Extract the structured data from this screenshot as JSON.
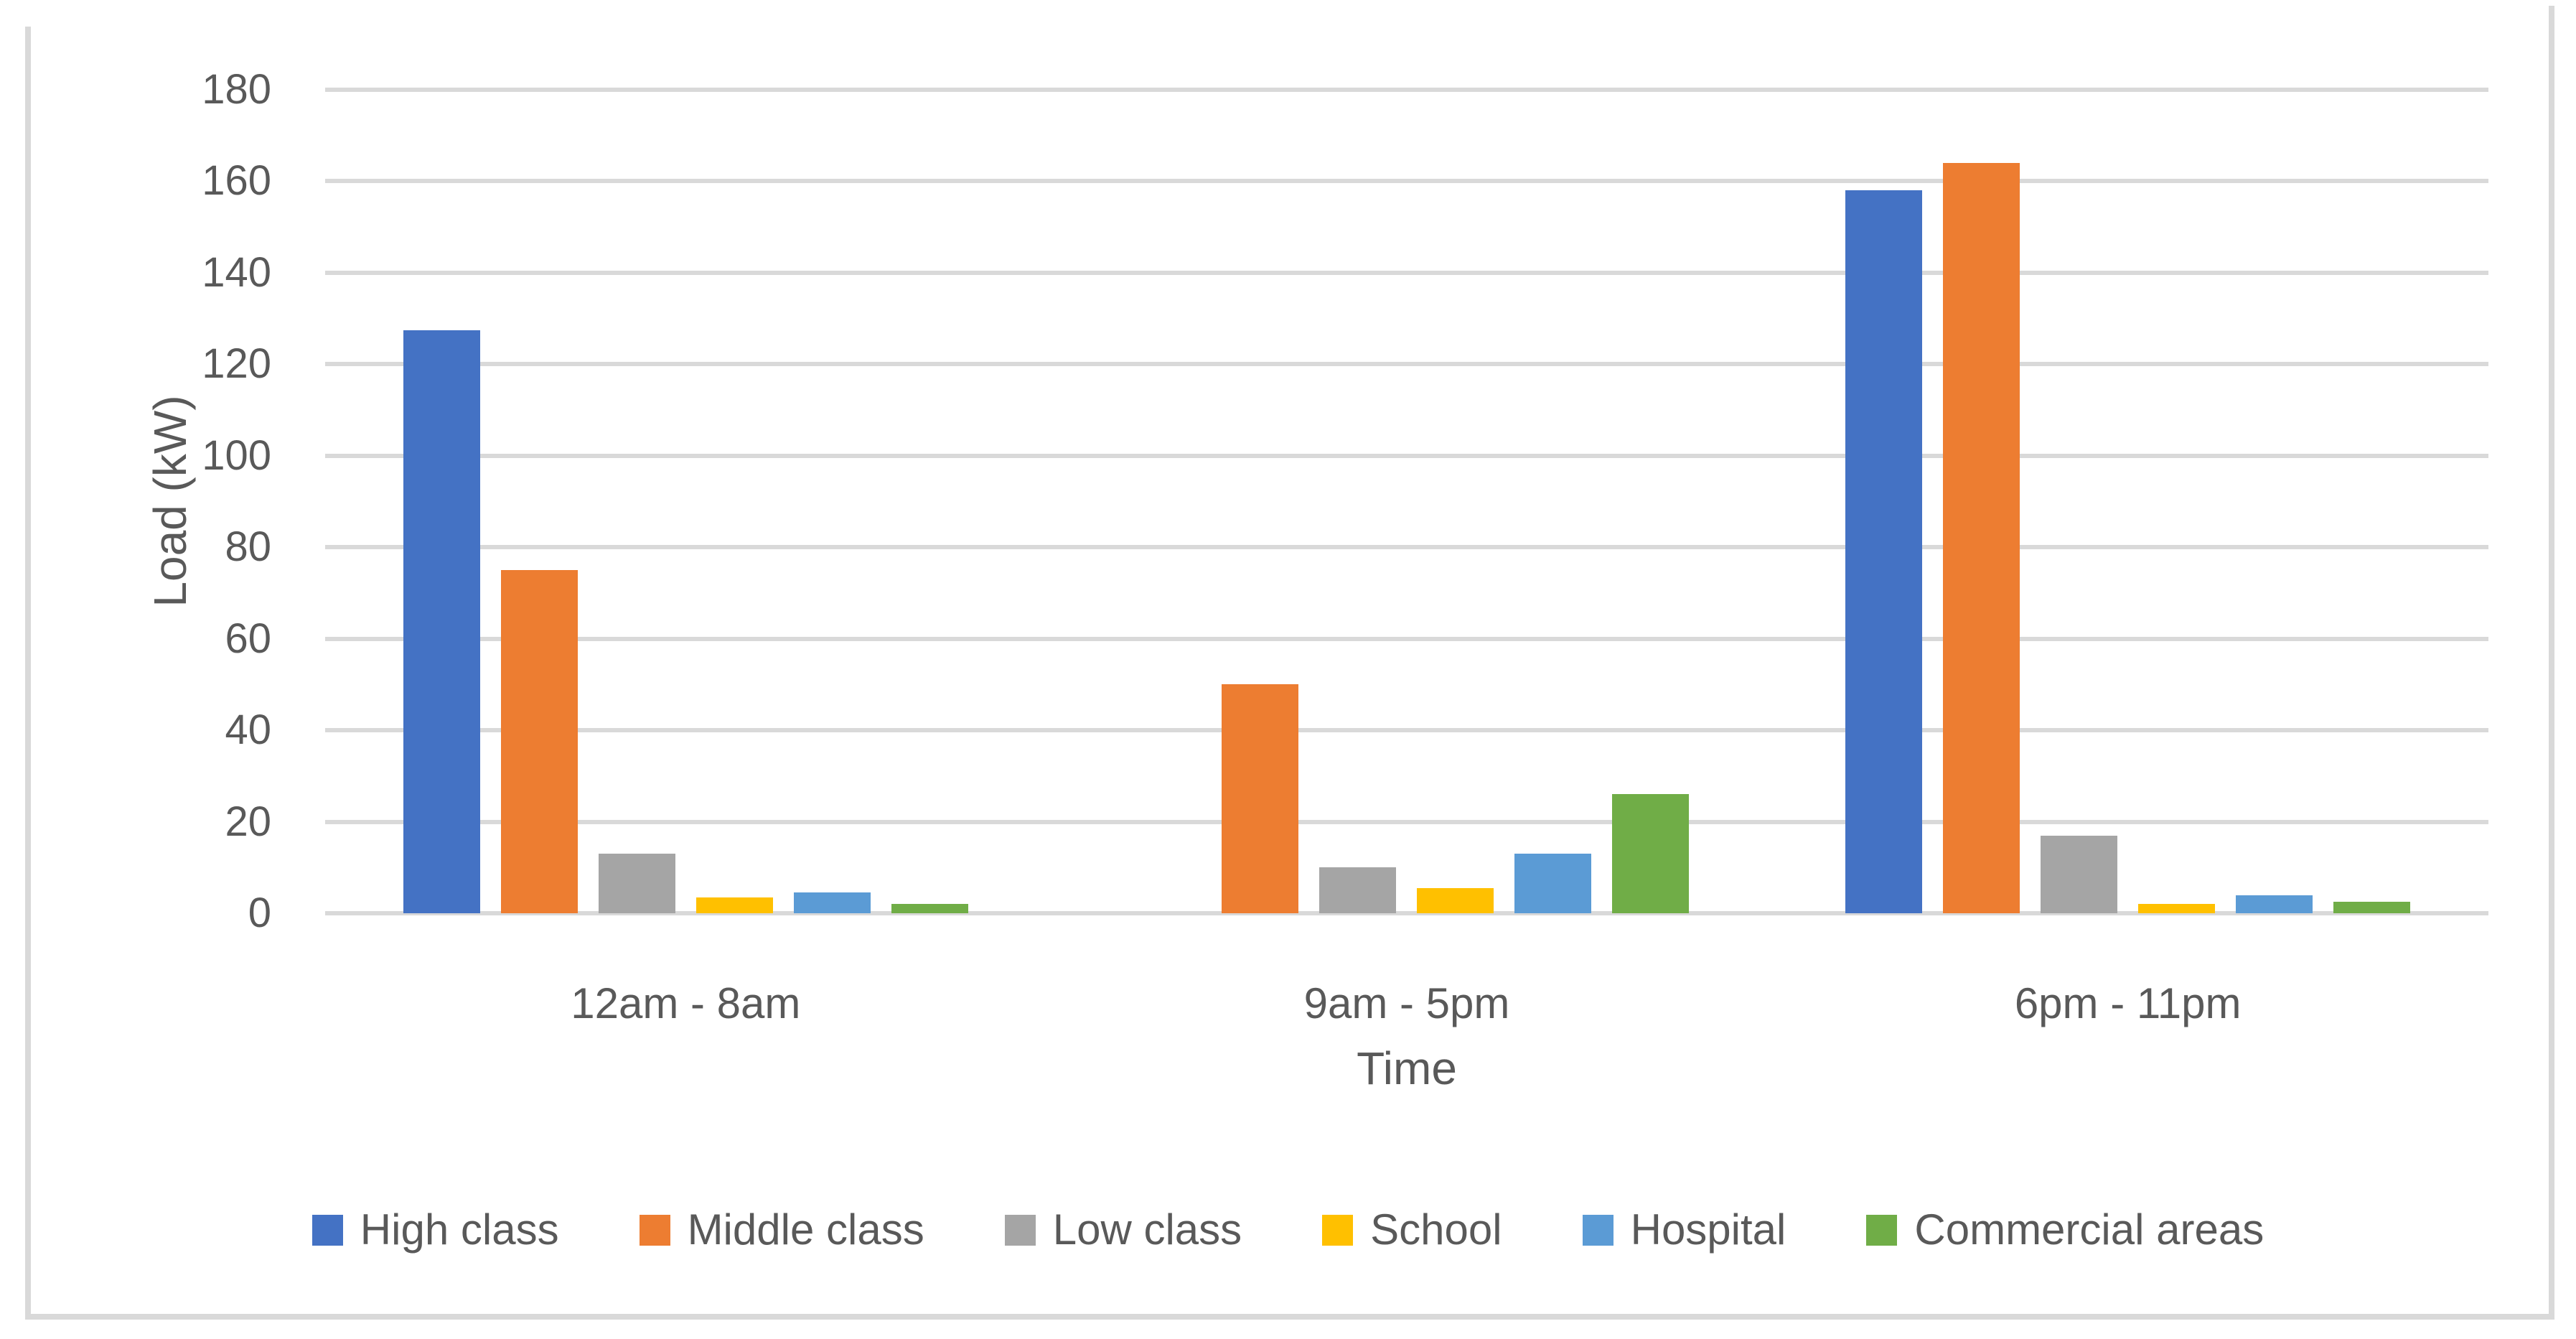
{
  "chart_data": {
    "type": "bar",
    "title": "",
    "categories": [
      "12am - 8am",
      "9am - 5pm",
      "6pm - 11pm"
    ],
    "series": [
      {
        "name": "High class",
        "color": "#4472C4",
        "values": [
          127.5,
          0,
          158
        ]
      },
      {
        "name": "Middle class",
        "color": "#ED7D31",
        "values": [
          75,
          50,
          164
        ]
      },
      {
        "name": "Low class",
        "color": "#A5A5A5",
        "values": [
          13,
          10,
          17
        ]
      },
      {
        "name": "School",
        "color": "#FFC000",
        "values": [
          3.5,
          5.5,
          2
        ]
      },
      {
        "name": "Hospital",
        "color": "#5B9BD5",
        "values": [
          4.5,
          13,
          4
        ]
      },
      {
        "name": "Commercial areas",
        "color": "#70AD47",
        "values": [
          2,
          26,
          2.5
        ]
      }
    ],
    "xlabel": "Time",
    "ylabel": "Load (kW)",
    "ylim": [
      0,
      180
    ],
    "yticks": [
      0,
      20,
      40,
      60,
      80,
      100,
      120,
      140,
      160,
      180
    ],
    "grid": true,
    "legend_position": "bottom",
    "colors": {
      "text": "#595959",
      "gridline": "#D9D9D9",
      "frame": "#D9D9D9",
      "background": "#FFFFFF"
    }
  }
}
